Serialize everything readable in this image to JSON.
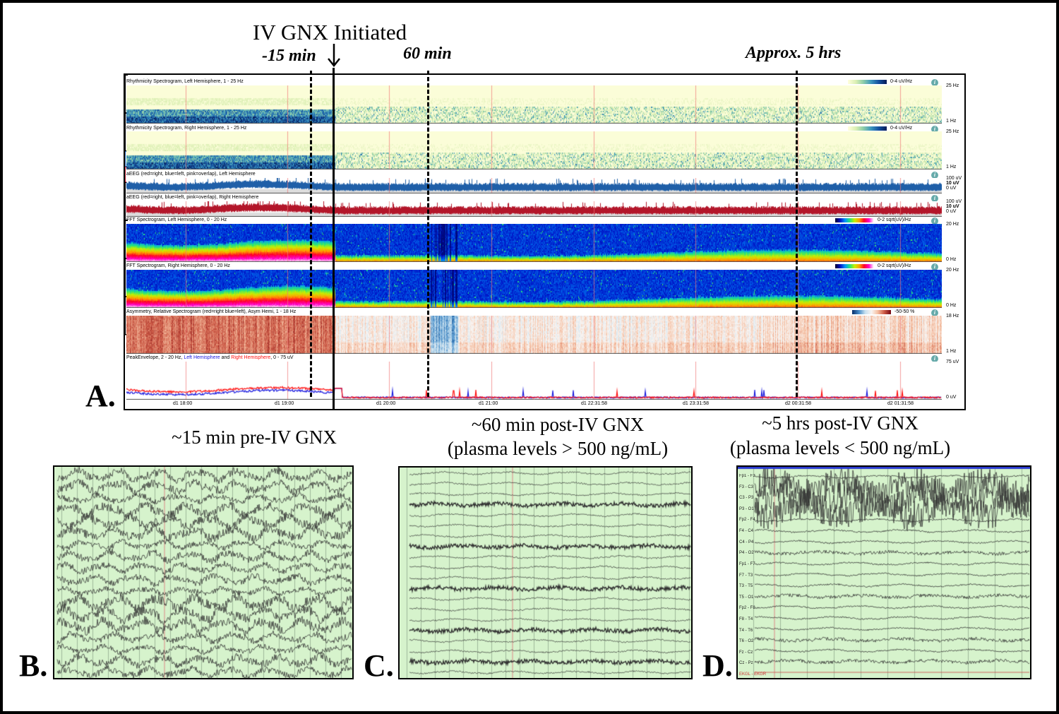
{
  "header": {
    "title": "IV GNX Initiated",
    "arrow_icon": "down-arrow",
    "markers": [
      "-15 min",
      "60 min",
      "Approx. 5 hrs"
    ]
  },
  "panel_labels": {
    "a": "A.",
    "b": "B.",
    "c": "C.",
    "d": "D."
  },
  "panelA": {
    "tracks": [
      {
        "title": "Rhythmicity Spectrogram, Left Hemisphere, 1 - 25 Hz",
        "legend": "0-4 uV/Hz",
        "scale": [
          "25 Hz",
          "1 Hz"
        ]
      },
      {
        "title": "Rhythmicity Spectrogram, Right Hemisphere, 1 - 25 Hz",
        "legend": "0-4 uV/Hz",
        "scale": [
          "25 Hz",
          "1 Hz"
        ]
      },
      {
        "title": "aEEG (red=right, blue=left, pink=overlap), Left Hemisphere",
        "legend": "",
        "scale": [
          "100 uV",
          "10 uV",
          "0 uV"
        ]
      },
      {
        "title": "aEEG (red=right, blue=left, pink=overlap), Right Hemisphere",
        "legend": "",
        "scale": [
          "100 uV",
          "10 uV",
          "0 uV"
        ]
      },
      {
        "title": "FFT Spectrogram, Left Hemisphere, 0 - 20 Hz",
        "legend": "0-2 sqrt(uV)/Hz",
        "scale": [
          "20 Hz",
          "0 Hz"
        ]
      },
      {
        "title": "FFT Spectrogram, Right Hemisphere, 0 - 20 Hz",
        "legend": "0-2 sqrt(uV)/Hz",
        "scale": [
          "20 Hz",
          "0 Hz"
        ]
      },
      {
        "title": "Asymmetry, Relative Spectrogram (red=right blue=left), Asym Hemi, 1 - 18 Hz",
        "legend": "-50-50 %",
        "scale": [
          "18 Hz",
          "1 Hz"
        ]
      },
      {
        "title_parts": [
          "PeakEnvelope, 2 - 20 Hz, ",
          "Left Hemisphere",
          " and ",
          "Right Hemisphere",
          ", 0 - 75 uV"
        ],
        "legend": "",
        "scale": [
          "75 uV",
          "0 uV"
        ]
      }
    ],
    "time_ticks": [
      "d1 18:00",
      "d1 19:00",
      "d1 20:00",
      "d1 21:00",
      "d1 22:31:58",
      "d1 23:31:58",
      "d2 00:31:58",
      "d2 01:31:58"
    ],
    "info_icon": "info",
    "colors": {
      "left": "#1f5fa8",
      "right": "#b3162a",
      "envelope_left": "#1a1adf",
      "envelope_right": "#ff1010"
    }
  },
  "captions": {
    "b": [
      "~15 min pre-IV GNX"
    ],
    "c": [
      "~60 min post-IV GNX",
      "(plasma levels > 500 ng/mL)"
    ],
    "d": [
      "~5 hrs post-IV GNX",
      "(plasma levels < 500 ng/mL)"
    ]
  },
  "panelD": {
    "channels": [
      "Fp1 - F3",
      "F3 - C3",
      "C3 - P3",
      "P3 - O1",
      "Fp2 - F4",
      "F4 - C4",
      "C4 - P4",
      "P4 - O2",
      "Fp1 - F7",
      "F7 - T3",
      "T3 - T5",
      "T5 - O1",
      "Fp2 - F8",
      "F8 - T4",
      "T4 - T6",
      "T6 - O2",
      "Fz - Cz",
      "Cz - Pz",
      "EKGL - EKGR"
    ]
  }
}
